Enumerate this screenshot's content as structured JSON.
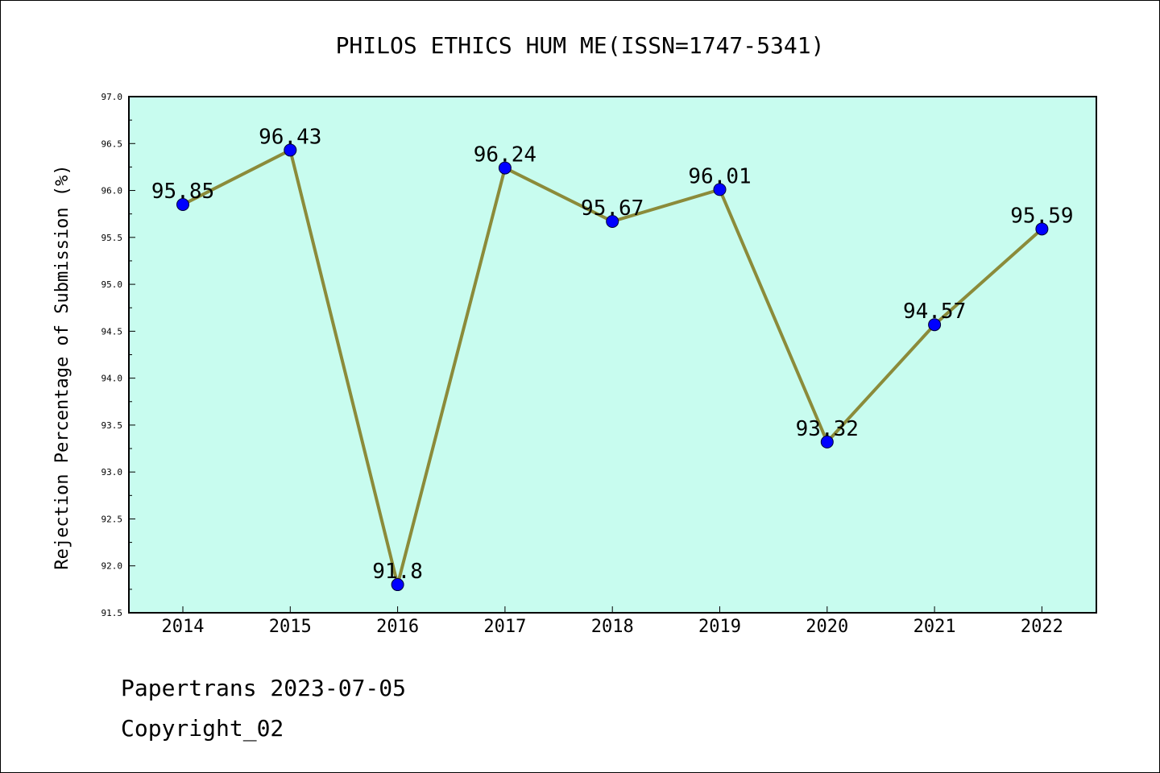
{
  "chart_data": {
    "type": "line",
    "title": "PHILOS ETHICS HUM ME(ISSN=1747-5341)",
    "xlabel": "",
    "ylabel": "Rejection Percentage of Submission (%)",
    "categories": [
      "2014",
      "2015",
      "2016",
      "2017",
      "2018",
      "2019",
      "2020",
      "2021",
      "2022"
    ],
    "series": [
      {
        "values": [
          95.85,
          96.43,
          91.8,
          96.24,
          95.67,
          96.01,
          93.32,
          94.57,
          95.59
        ]
      }
    ],
    "data_labels": [
      "95.85",
      "96.43",
      "91.8",
      "96.24",
      "95.67",
      "96.01",
      "93.32",
      "94.57",
      "95.59"
    ],
    "ylim": [
      91.5,
      97.0
    ],
    "yticks": [
      "91.5",
      "92.0",
      "92.5",
      "93.0",
      "93.5",
      "94.0",
      "94.5",
      "95.0",
      "95.5",
      "96.0",
      "96.5",
      "97.0"
    ],
    "grid": false,
    "legend": "none",
    "colors": {
      "plot_background": "#c8fcef",
      "line": "#8b8b3a",
      "marker": "#0000ff"
    }
  },
  "footer": {
    "line1": "Papertrans 2023-07-05",
    "line2": "Copyright_02"
  }
}
